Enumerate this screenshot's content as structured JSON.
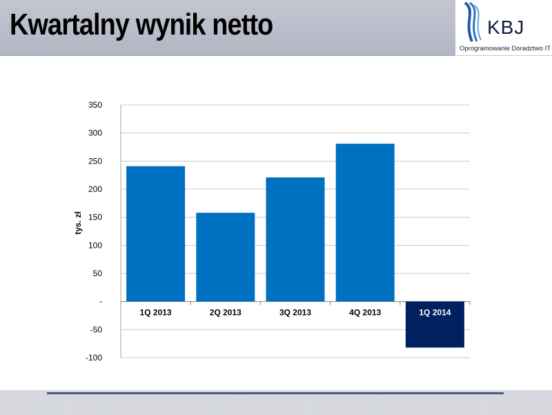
{
  "header": {
    "title": "Kwartalny wynik netto"
  },
  "logo": {
    "name": "KBJ",
    "tagline": "Oprogramowanie Doradztwo IT",
    "icon": "kbj-wave-logo-icon"
  },
  "colors": {
    "bar_primary": "#0070C0",
    "bar_highlight": "#002060",
    "gridline": "#c8c8c8",
    "header_band": "#b8bcc8"
  },
  "chart_data": {
    "type": "bar",
    "categories": [
      "1Q 2013",
      "2Q 2013",
      "3Q 2013",
      "4Q 2013",
      "1Q 2014"
    ],
    "values": [
      241,
      158,
      221,
      281,
      -82
    ],
    "highlight_index": 4,
    "title": "",
    "xlabel": "",
    "ylabel": "tys. zł",
    "ylim": [
      -100,
      350
    ],
    "yticks": [
      -100,
      -50,
      0,
      50,
      100,
      150,
      200,
      250,
      300,
      350
    ],
    "ytick_labels": [
      "-100",
      "-50",
      "-",
      "50",
      "100",
      "150",
      "200",
      "250",
      "300",
      "350"
    ],
    "grid": true,
    "legend": "none"
  }
}
